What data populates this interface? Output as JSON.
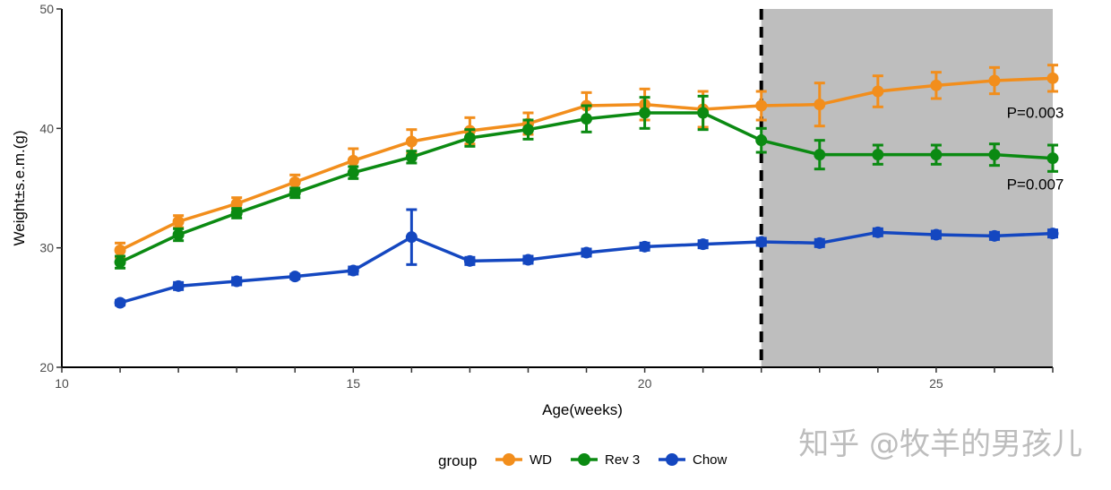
{
  "chart_data": {
    "type": "line",
    "xlabel": "Age(weeks)",
    "ylabel": "Weight±s.e.m.(g)",
    "xlim": [
      10,
      27
    ],
    "ylim": [
      20,
      50
    ],
    "xticks": [
      10,
      15,
      20,
      25
    ],
    "yticks": [
      20,
      30,
      40,
      50
    ],
    "x_tick_labels": [
      "10",
      "15",
      "20",
      "25"
    ],
    "y_tick_labels": [
      "20",
      "30",
      "40",
      "50"
    ],
    "grid": false,
    "legend_title": "group",
    "legend_placement": "bottom",
    "shaded_region": {
      "x": [
        22,
        27
      ],
      "color": "#bebebe"
    },
    "vertical_dashed_line": 22,
    "x": [
      11,
      12,
      13,
      14,
      15,
      16,
      17,
      18,
      19,
      20,
      21,
      22,
      23,
      24,
      25,
      26,
      27
    ],
    "series": [
      {
        "name": "WD",
        "color": "#f28e1c",
        "values": [
          29.8,
          32.2,
          33.7,
          35.5,
          37.3,
          38.9,
          39.8,
          40.4,
          41.9,
          42.0,
          41.6,
          41.9,
          42.0,
          43.1,
          43.6,
          44.0,
          44.2
        ],
        "sem": [
          0.6,
          0.5,
          0.5,
          0.6,
          1.0,
          1.0,
          1.1,
          0.9,
          1.1,
          1.3,
          1.5,
          1.2,
          1.8,
          1.3,
          1.1,
          1.1,
          1.1
        ]
      },
      {
        "name": "Rev 3",
        "color": "#0b8a12",
        "values": [
          28.8,
          31.1,
          32.9,
          34.6,
          36.3,
          37.6,
          39.2,
          39.9,
          40.8,
          41.3,
          41.3,
          39.0,
          37.8,
          37.8,
          37.8,
          37.8,
          37.5
        ],
        "sem": [
          0.5,
          0.5,
          0.4,
          0.4,
          0.5,
          0.5,
          0.7,
          0.8,
          1.1,
          1.3,
          1.4,
          1.0,
          1.2,
          0.8,
          0.8,
          0.9,
          1.1
        ]
      },
      {
        "name": "Chow",
        "color": "#1447c0",
        "values": [
          25.4,
          26.8,
          27.2,
          27.6,
          28.1,
          30.9,
          28.9,
          29.0,
          29.6,
          30.1,
          30.3,
          30.5,
          30.4,
          31.3,
          31.1,
          31.0,
          31.2
        ],
        "sem": [
          0.2,
          0.3,
          0.3,
          0.2,
          0.3,
          2.3,
          0.3,
          0.3,
          0.3,
          0.3,
          0.3,
          0.3,
          0.3,
          0.3,
          0.3,
          0.3,
          0.3
        ]
      }
    ],
    "annotations": [
      {
        "text": "P=0.003",
        "x": 26.7,
        "y": 40.9
      },
      {
        "text": "P=0.007",
        "x": 26.7,
        "y": 34.9
      }
    ]
  },
  "watermark": "知乎 @牧羊的男孩儿"
}
